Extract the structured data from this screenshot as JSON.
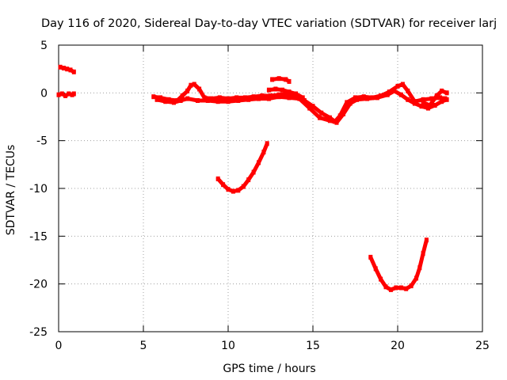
{
  "chart_data": {
    "type": "scatter",
    "title": "Day 116 of 2020, Sidereal Day-to-day VTEC variation (SDTVAR) for receiver larj",
    "xlabel": "GPS time / hours",
    "ylabel": "SDTVAR / TECUs",
    "xlim": [
      0,
      25
    ],
    "ylim": [
      -25,
      5
    ],
    "x_ticks": [
      0,
      5,
      10,
      15,
      20,
      25
    ],
    "y_ticks": [
      5,
      0,
      -5,
      -10,
      -15,
      -20,
      -25
    ],
    "grid": true,
    "legend": "none",
    "series_color": "#ff0000",
    "series": [
      {
        "points": [
          [
            0.0,
            -0.2
          ],
          [
            0.2,
            -0.1
          ],
          [
            0.4,
            -0.3
          ],
          [
            0.6,
            -0.1
          ],
          [
            0.8,
            -0.2
          ],
          [
            0.9,
            -0.1
          ]
        ]
      },
      {
        "points": [
          [
            0.1,
            2.7
          ],
          [
            0.3,
            2.6
          ],
          [
            0.5,
            2.5
          ],
          [
            0.7,
            2.4
          ],
          [
            0.9,
            2.2
          ]
        ]
      },
      {
        "points": [
          [
            5.6,
            -0.4
          ],
          [
            6.0,
            -0.5
          ],
          [
            6.5,
            -0.7
          ],
          [
            7.0,
            -0.8
          ],
          [
            7.3,
            -0.3
          ],
          [
            7.6,
            0.2
          ],
          [
            7.8,
            0.8
          ],
          [
            8.0,
            0.9
          ],
          [
            8.3,
            0.4
          ],
          [
            8.6,
            -0.5
          ],
          [
            9.0,
            -0.6
          ],
          [
            9.5,
            -0.5
          ],
          [
            10.0,
            -0.6
          ],
          [
            10.5,
            -0.5
          ],
          [
            11.0,
            -0.5
          ],
          [
            11.5,
            -0.4
          ],
          [
            12.0,
            -0.3
          ],
          [
            12.5,
            -0.3
          ],
          [
            13.0,
            -0.2
          ],
          [
            13.5,
            -0.1
          ],
          [
            14.0,
            -0.3
          ],
          [
            14.5,
            -0.8
          ],
          [
            15.0,
            -1.4
          ],
          [
            15.5,
            -2.1
          ],
          [
            16.0,
            -2.6
          ],
          [
            16.3,
            -3.0
          ],
          [
            16.6,
            -2.4
          ],
          [
            17.0,
            -1.0
          ],
          [
            17.5,
            -0.5
          ],
          [
            18.0,
            -0.4
          ],
          [
            18.5,
            -0.5
          ],
          [
            19.0,
            -0.3
          ],
          [
            19.5,
            0.1
          ],
          [
            20.0,
            0.7
          ],
          [
            20.3,
            0.9
          ],
          [
            20.6,
            0.2
          ],
          [
            21.0,
            -0.9
          ],
          [
            21.5,
            -0.7
          ],
          [
            22.0,
            -0.6
          ],
          [
            22.5,
            -0.5
          ],
          [
            22.8,
            -0.6
          ]
        ]
      },
      {
        "points": [
          [
            5.8,
            -0.7
          ],
          [
            6.3,
            -0.9
          ],
          [
            6.8,
            -1.0
          ],
          [
            7.2,
            -0.8
          ],
          [
            7.6,
            -0.6
          ],
          [
            8.2,
            -0.8
          ],
          [
            8.8,
            -0.8
          ],
          [
            9.4,
            -0.9
          ],
          [
            10.0,
            -0.9
          ],
          [
            10.6,
            -0.8
          ],
          [
            11.2,
            -0.7
          ],
          [
            11.8,
            -0.6
          ],
          [
            12.4,
            -0.6
          ],
          [
            13.0,
            -0.4
          ],
          [
            13.6,
            -0.5
          ],
          [
            14.2,
            -0.6
          ],
          [
            14.8,
            -1.6
          ],
          [
            15.4,
            -2.6
          ],
          [
            16.0,
            -2.9
          ],
          [
            16.4,
            -3.1
          ],
          [
            16.8,
            -2.2
          ],
          [
            17.2,
            -1.1
          ],
          [
            17.6,
            -0.7
          ],
          [
            18.2,
            -0.6
          ],
          [
            18.8,
            -0.5
          ],
          [
            19.4,
            -0.2
          ],
          [
            19.8,
            0.2
          ],
          [
            20.2,
            -0.2
          ],
          [
            20.6,
            -0.7
          ],
          [
            21.0,
            -1.1
          ],
          [
            21.4,
            -1.4
          ],
          [
            21.8,
            -1.6
          ],
          [
            22.2,
            -1.3
          ],
          [
            22.6,
            -0.9
          ],
          [
            22.9,
            -0.7
          ]
        ]
      },
      {
        "points": [
          [
            12.4,
            0.3
          ],
          [
            12.8,
            0.4
          ],
          [
            13.2,
            0.3
          ],
          [
            13.6,
            0.1
          ],
          [
            14.0,
            -0.1
          ],
          [
            14.4,
            -0.5
          ]
        ]
      },
      {
        "points": [
          [
            12.6,
            1.4
          ],
          [
            13.0,
            1.5
          ],
          [
            13.4,
            1.4
          ],
          [
            13.6,
            1.2
          ]
        ]
      },
      {
        "points": [
          [
            21.5,
            -1.0
          ],
          [
            21.9,
            -1.3
          ],
          [
            22.3,
            -0.3
          ],
          [
            22.6,
            0.2
          ],
          [
            22.9,
            0.0
          ]
        ]
      },
      {
        "points": [
          [
            9.4,
            -9.0
          ],
          [
            9.7,
            -9.6
          ],
          [
            10.0,
            -10.1
          ],
          [
            10.3,
            -10.3
          ],
          [
            10.6,
            -10.2
          ],
          [
            10.9,
            -9.8
          ],
          [
            11.2,
            -9.1
          ],
          [
            11.5,
            -8.3
          ],
          [
            11.8,
            -7.3
          ],
          [
            12.1,
            -6.2
          ],
          [
            12.3,
            -5.3
          ]
        ]
      },
      {
        "points": [
          [
            18.4,
            -17.2
          ],
          [
            18.7,
            -18.4
          ],
          [
            19.0,
            -19.5
          ],
          [
            19.3,
            -20.3
          ],
          [
            19.6,
            -20.6
          ],
          [
            19.9,
            -20.4
          ],
          [
            20.2,
            -20.4
          ],
          [
            20.5,
            -20.5
          ],
          [
            20.8,
            -20.2
          ],
          [
            21.1,
            -19.4
          ],
          [
            21.3,
            -18.3
          ],
          [
            21.5,
            -16.8
          ],
          [
            21.7,
            -15.4
          ]
        ]
      }
    ]
  }
}
